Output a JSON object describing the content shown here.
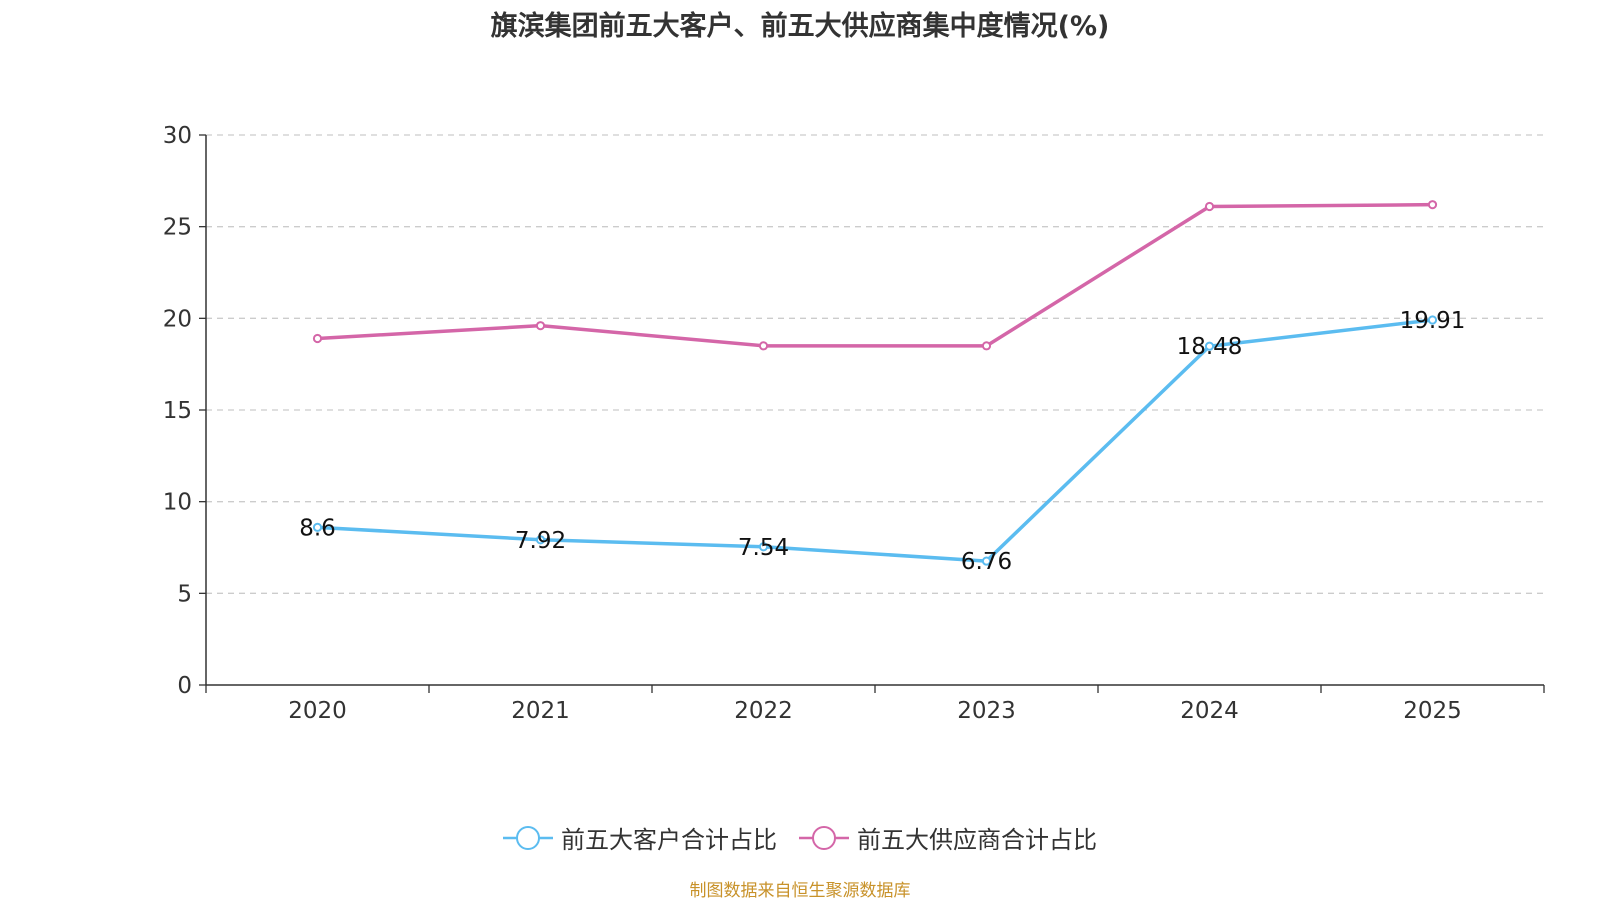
{
  "chart_data": {
    "type": "line",
    "title": "旗滨集团前五大客户、前五大供应商集中度情况(%)",
    "categories": [
      "2020",
      "2021",
      "2022",
      "2023",
      "2024",
      "2025"
    ],
    "ylim": [
      0,
      30
    ],
    "yticks": [
      0,
      5,
      10,
      15,
      20,
      25,
      30
    ],
    "grid": true,
    "legend_position": "bottom",
    "series": [
      {
        "name": "前五大客户合计占比",
        "color": "#5bbcf0",
        "values": [
          8.6,
          7.92,
          7.54,
          6.76,
          18.48,
          19.91
        ],
        "labels": [
          "8.6",
          "7.92",
          "7.54",
          "6.76",
          "18.48",
          "19.91"
        ]
      },
      {
        "name": "前五大供应商合计占比",
        "color": "#d466a8",
        "values": [
          18.9,
          19.6,
          18.5,
          18.5,
          26.1,
          26.2
        ]
      }
    ],
    "source": "制图数据来自恒生聚源数据库"
  }
}
